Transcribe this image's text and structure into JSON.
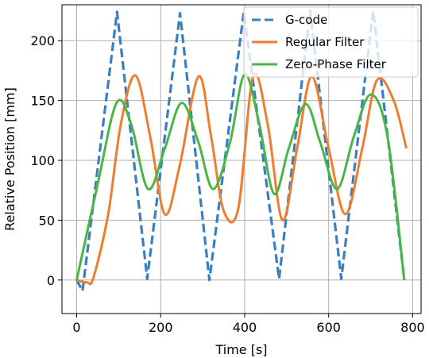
{
  "chart_data": {
    "type": "line",
    "xlabel": "Time [s]",
    "ylabel": "Relative Position [mm]",
    "xlim": [
      -35,
      820
    ],
    "ylim": [
      -28,
      230
    ],
    "xticks": [
      0,
      200,
      400,
      600,
      800
    ],
    "yticks": [
      0,
      50,
      100,
      150,
      200
    ],
    "grid": true,
    "legend_position": "top-right",
    "series": [
      {
        "name": "G-code",
        "color": "#3a7fc1",
        "dash": "dashed",
        "x": [
          0,
          14,
          96,
          168,
          246,
          316,
          398,
          482,
          556,
          630,
          706,
          780
        ],
        "y": [
          0,
          -9,
          224,
          1,
          223,
          0,
          224,
          1,
          225,
          1,
          225,
          0
        ]
      },
      {
        "name": "Regular Filter",
        "color": "#f07d2e",
        "dash": "solid",
        "x": [
          0,
          25,
          40,
          75,
          105,
          140,
          175,
          210,
          245,
          290,
          320,
          350,
          385,
          420,
          455,
          490,
          525,
          560,
          600,
          640,
          680,
          715,
          755,
          785
        ],
        "y": [
          0,
          -2,
          2,
          55,
          130,
          171,
          120,
          55,
          95,
          170,
          120,
          58,
          60,
          170,
          130,
          50,
          110,
          170,
          110,
          55,
          110,
          167,
          150,
          110
        ]
      },
      {
        "name": "Zero-Phase Filter",
        "color": "#4ab547",
        "dash": "solid",
        "x": [
          0,
          50,
          95,
          130,
          170,
          210,
          250,
          290,
          325,
          365,
          400,
          435,
          470,
          505,
          545,
          580,
          620,
          660,
          700,
          740,
          780
        ],
        "y": [
          0,
          80,
          148,
          130,
          76,
          110,
          148,
          115,
          76,
          115,
          172,
          130,
          72,
          110,
          147,
          115,
          76,
          120,
          155,
          120,
          0
        ]
      }
    ]
  }
}
